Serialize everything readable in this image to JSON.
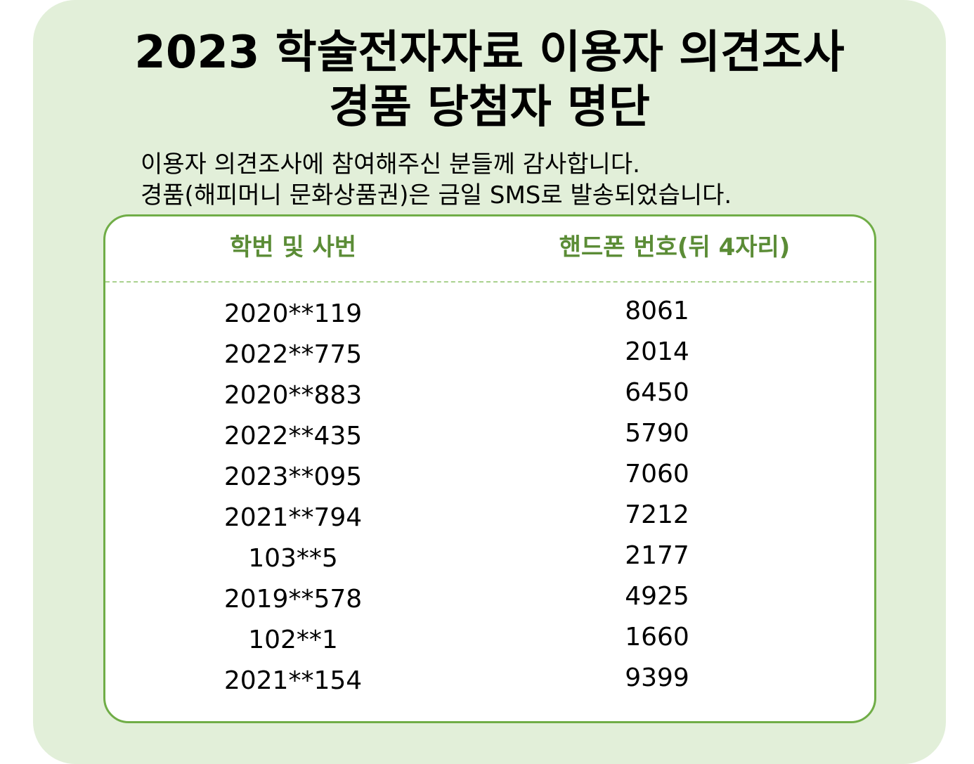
{
  "title": {
    "line1": "2023 학술전자자료 이용자 의견조사",
    "line2": "경품 당첨자 명단"
  },
  "notice": {
    "line1": "이용자 의견조사에 참여해주신 분들께 감사합니다.",
    "line2": "경품(해피머니 문화상품권)은 금일 SMS로 발송되었습니다."
  },
  "table": {
    "headers": [
      "학번 및 사번",
      "핸드폰 번호(뒤 4자리)"
    ],
    "rows": [
      {
        "id": "2020**119",
        "phone": "8061"
      },
      {
        "id": "2022**775",
        "phone": "2014"
      },
      {
        "id": "2020**883",
        "phone": "6450"
      },
      {
        "id": "2022**435",
        "phone": "5790"
      },
      {
        "id": "2023**095",
        "phone": "7060"
      },
      {
        "id": "2021**794",
        "phone": "7212"
      },
      {
        "id": "103**5",
        "phone": "2177"
      },
      {
        "id": "2019**578",
        "phone": "4925"
      },
      {
        "id": "102**1",
        "phone": "1660"
      },
      {
        "id": "2021**154",
        "phone": "9399"
      }
    ]
  },
  "colors": {
    "background": "#e2efd9",
    "accent": "#70ad47",
    "header_text": "#5b8c36"
  }
}
